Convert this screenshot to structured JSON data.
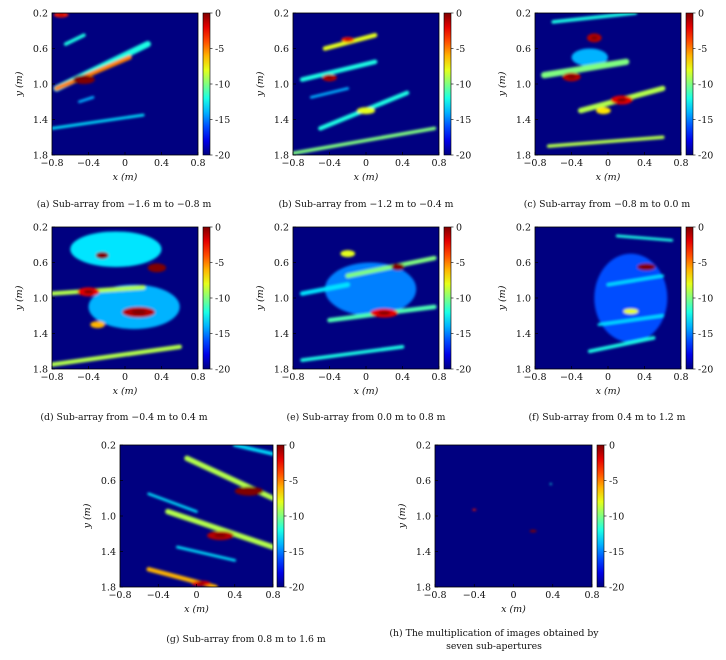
{
  "colorbar": {
    "ticks": [
      "0",
      "-5",
      "-10",
      "-15",
      "-20"
    ]
  },
  "colors": {
    "background": "#0d2d8c",
    "bright": "#e8d816",
    "peak": "#c81414",
    "line": "#3cc2e8"
  },
  "chart_data": [
    {
      "type": "heatmap",
      "caption": "(a) Sub-array from −1.6 m to −0.8 m",
      "xlabel": "x (m)",
      "ylabel": "y (m)",
      "xlim": [
        -0.8,
        0.8
      ],
      "ylim": [
        1.8,
        0.2
      ],
      "clim": [
        -20,
        0
      ],
      "x_ticks": [
        "−0.8",
        "−0.4",
        "0",
        "0.4",
        "0.8"
      ],
      "y_ticks": [
        "0.2",
        "0.6",
        "1.0",
        "1.4",
        "1.8"
      ],
      "colorbar_ticks": [
        "0",
        "-5",
        "-10",
        "-15",
        "-20"
      ],
      "features": [
        {
          "kind": "streak",
          "x1": -0.75,
          "y1": 1.05,
          "x2": 0.25,
          "y2": 0.55,
          "w": 0.07,
          "level": -12
        },
        {
          "kind": "streak",
          "x1": -0.75,
          "y1": 1.05,
          "x2": 0.05,
          "y2": 0.7,
          "w": 0.05,
          "level": -5
        },
        {
          "kind": "blob",
          "x": -0.45,
          "y": 0.95,
          "rx": 0.12,
          "ry": 0.05,
          "level": 0
        },
        {
          "kind": "blob",
          "x": -0.7,
          "y": 0.22,
          "rx": 0.08,
          "ry": 0.03,
          "level": -3
        },
        {
          "kind": "streak",
          "x1": -0.65,
          "y1": 0.55,
          "x2": -0.45,
          "y2": 0.45,
          "w": 0.04,
          "level": -12
        },
        {
          "kind": "streak",
          "x1": -0.8,
          "y1": 1.5,
          "x2": 0.2,
          "y2": 1.35,
          "w": 0.03,
          "level": -13
        },
        {
          "kind": "streak",
          "x1": -0.5,
          "y1": 1.2,
          "x2": -0.35,
          "y2": 1.15,
          "w": 0.03,
          "level": -14
        }
      ]
    },
    {
      "type": "heatmap",
      "caption": "(b) Sub-array from −1.2 m to −0.4 m",
      "xlabel": "x (m)",
      "ylabel": "y (m)",
      "xlim": [
        -0.8,
        0.8
      ],
      "ylim": [
        1.8,
        0.2
      ],
      "clim": [
        -20,
        0
      ],
      "x_ticks": [
        "−0.8",
        "−0.4",
        "0",
        "0.4",
        "0.8"
      ],
      "y_ticks": [
        "0.2",
        "0.6",
        "1.0",
        "1.4",
        "1.8"
      ],
      "colorbar_ticks": [
        "0",
        "-5",
        "-10",
        "-15",
        "-20"
      ],
      "features": [
        {
          "kind": "streak",
          "x1": -0.7,
          "y1": 0.95,
          "x2": 0.1,
          "y2": 0.75,
          "w": 0.05,
          "level": -12
        },
        {
          "kind": "blob",
          "x": -0.4,
          "y": 0.93,
          "rx": 0.08,
          "ry": 0.04,
          "level": -1
        },
        {
          "kind": "streak",
          "x1": -0.45,
          "y1": 0.6,
          "x2": 0.1,
          "y2": 0.45,
          "w": 0.05,
          "level": -8
        },
        {
          "kind": "blob",
          "x": -0.2,
          "y": 0.5,
          "rx": 0.07,
          "ry": 0.03,
          "level": -3
        },
        {
          "kind": "streak",
          "x1": -0.5,
          "y1": 1.5,
          "x2": 0.45,
          "y2": 1.1,
          "w": 0.05,
          "level": -12
        },
        {
          "kind": "blob",
          "x": 0.0,
          "y": 1.3,
          "rx": 0.1,
          "ry": 0.04,
          "level": -8
        },
        {
          "kind": "streak",
          "x1": -0.8,
          "y1": 1.78,
          "x2": 0.75,
          "y2": 1.5,
          "w": 0.04,
          "level": -10
        },
        {
          "kind": "streak",
          "x1": -0.6,
          "y1": 1.15,
          "x2": -0.2,
          "y2": 1.05,
          "w": 0.03,
          "level": -14
        }
      ]
    },
    {
      "type": "heatmap",
      "caption": "(c) Sub-array from −0.8 m to 0.0 m",
      "xlabel": "x (m)",
      "ylabel": "y (m)",
      "xlim": [
        -0.8,
        0.8
      ],
      "ylim": [
        1.8,
        0.2
      ],
      "clim": [
        -20,
        0
      ],
      "x_ticks": [
        "−0.8",
        "−0.4",
        "0",
        "0.4",
        "0.8"
      ],
      "y_ticks": [
        "0.2",
        "0.6",
        "1.0",
        "1.4",
        "1.8"
      ],
      "colorbar_ticks": [
        "0",
        "-5",
        "-10",
        "-15",
        "-20"
      ],
      "features": [
        {
          "kind": "streak",
          "x1": -0.6,
          "y1": 0.3,
          "x2": 0.3,
          "y2": 0.2,
          "w": 0.04,
          "level": -12
        },
        {
          "kind": "blob",
          "x": -0.15,
          "y": 0.48,
          "rx": 0.08,
          "ry": 0.05,
          "level": -1
        },
        {
          "kind": "blob",
          "x": -0.4,
          "y": 0.92,
          "rx": 0.1,
          "ry": 0.05,
          "level": -1
        },
        {
          "kind": "streak",
          "x1": -0.7,
          "y1": 0.9,
          "x2": 0.2,
          "y2": 0.75,
          "w": 0.07,
          "level": -10
        },
        {
          "kind": "blob",
          "x": 0.15,
          "y": 1.18,
          "rx": 0.12,
          "ry": 0.05,
          "level": -2
        },
        {
          "kind": "streak",
          "x1": -0.3,
          "y1": 1.3,
          "x2": 0.6,
          "y2": 1.05,
          "w": 0.06,
          "level": -9
        },
        {
          "kind": "blob",
          "x": -0.05,
          "y": 1.3,
          "rx": 0.08,
          "ry": 0.04,
          "level": -7
        },
        {
          "kind": "streak",
          "x1": -0.65,
          "y1": 1.7,
          "x2": 0.6,
          "y2": 1.6,
          "w": 0.04,
          "level": -9
        },
        {
          "kind": "blob",
          "x": -0.2,
          "y": 0.7,
          "rx": 0.2,
          "ry": 0.1,
          "level": -14
        }
      ]
    },
    {
      "type": "heatmap",
      "caption": "(d) Sub-array from −0.4 m to 0.4 m",
      "xlabel": "x (m)",
      "ylabel": "y (m)",
      "xlim": [
        -0.8,
        0.8
      ],
      "ylim": [
        1.8,
        0.2
      ],
      "clim": [
        -20,
        0
      ],
      "x_ticks": [
        "−0.8",
        "−0.4",
        "0",
        "0.4",
        "0.8"
      ],
      "y_ticks": [
        "0.2",
        "0.6",
        "1.0",
        "1.4",
        "1.8"
      ],
      "colorbar_ticks": [
        "0",
        "-5",
        "-10",
        "-15",
        "-20"
      ],
      "features": [
        {
          "kind": "blob",
          "x": -0.1,
          "y": 0.45,
          "rx": 0.5,
          "ry": 0.2,
          "level": -13
        },
        {
          "kind": "blob",
          "x": -0.25,
          "y": 0.52,
          "rx": 0.07,
          "ry": 0.04,
          "level": 0
        },
        {
          "kind": "blob",
          "x": 0.35,
          "y": 0.66,
          "rx": 0.1,
          "ry": 0.05,
          "level": 0
        },
        {
          "kind": "blob",
          "x": -0.4,
          "y": 0.93,
          "rx": 0.12,
          "ry": 0.05,
          "level": -2
        },
        {
          "kind": "streak",
          "x1": -0.8,
          "y1": 0.95,
          "x2": 0.2,
          "y2": 0.88,
          "w": 0.05,
          "level": -9
        },
        {
          "kind": "blob",
          "x": 0.15,
          "y": 1.16,
          "rx": 0.18,
          "ry": 0.06,
          "level": -1
        },
        {
          "kind": "blob",
          "x": -0.3,
          "y": 1.3,
          "rx": 0.08,
          "ry": 0.04,
          "level": -6
        },
        {
          "kind": "streak",
          "x1": -0.8,
          "y1": 1.75,
          "x2": 0.6,
          "y2": 1.55,
          "w": 0.05,
          "level": -9
        },
        {
          "kind": "blob",
          "x": 0.1,
          "y": 1.1,
          "rx": 0.5,
          "ry": 0.25,
          "level": -14
        }
      ]
    },
    {
      "type": "heatmap",
      "caption": "(e) Sub-array from 0.0 m to 0.8 m",
      "xlabel": "x (m)",
      "ylabel": "y (m)",
      "xlim": [
        -0.8,
        0.8
      ],
      "ylim": [
        1.8,
        0.2
      ],
      "clim": [
        -20,
        0
      ],
      "x_ticks": [
        "−0.8",
        "−0.4",
        "0",
        "0.4",
        "0.8"
      ],
      "y_ticks": [
        "0.2",
        "0.6",
        "1.0",
        "1.4",
        "1.8"
      ],
      "colorbar_ticks": [
        "0",
        "-5",
        "-10",
        "-15",
        "-20"
      ],
      "features": [
        {
          "kind": "blob",
          "x": 0.35,
          "y": 0.65,
          "rx": 0.07,
          "ry": 0.04,
          "level": 0
        },
        {
          "kind": "streak",
          "x1": -0.2,
          "y1": 0.75,
          "x2": 0.75,
          "y2": 0.55,
          "w": 0.05,
          "level": -10
        },
        {
          "kind": "blob",
          "x": -0.2,
          "y": 0.5,
          "rx": 0.08,
          "ry": 0.04,
          "level": -8
        },
        {
          "kind": "blob",
          "x": 0.2,
          "y": 1.17,
          "rx": 0.15,
          "ry": 0.05,
          "level": -2
        },
        {
          "kind": "streak",
          "x1": -0.4,
          "y1": 1.25,
          "x2": 0.75,
          "y2": 1.1,
          "w": 0.05,
          "level": -11
        },
        {
          "kind": "streak",
          "x1": -0.7,
          "y1": 0.95,
          "x2": -0.2,
          "y2": 0.85,
          "w": 0.05,
          "level": -13
        },
        {
          "kind": "streak",
          "x1": -0.7,
          "y1": 1.7,
          "x2": 0.4,
          "y2": 1.55,
          "w": 0.04,
          "level": -12
        },
        {
          "kind": "blob",
          "x": 0.05,
          "y": 0.9,
          "rx": 0.5,
          "ry": 0.3,
          "level": -15
        }
      ]
    },
    {
      "type": "heatmap",
      "caption": "(f) Sub-array from 0.4 m to 1.2 m",
      "xlabel": "x (m)",
      "ylabel": "y (m)",
      "xlim": [
        -0.8,
        0.8
      ],
      "ylim": [
        1.8,
        0.2
      ],
      "clim": [
        -20,
        0
      ],
      "x_ticks": [
        "−0.8",
        "−0.4",
        "0",
        "0.4",
        "0.8"
      ],
      "y_ticks": [
        "0.2",
        "0.6",
        "1.0",
        "1.4",
        "1.8"
      ],
      "colorbar_ticks": [
        "0",
        "-5",
        "-10",
        "-15",
        "-20"
      ],
      "features": [
        {
          "kind": "blob",
          "x": 0.42,
          "y": 0.65,
          "rx": 0.1,
          "ry": 0.04,
          "level": 0
        },
        {
          "kind": "blob",
          "x": 0.25,
          "y": 1.15,
          "rx": 0.08,
          "ry": 0.03,
          "level": -8
        },
        {
          "kind": "streak",
          "x1": 0.1,
          "y1": 0.3,
          "x2": 0.7,
          "y2": 0.35,
          "w": 0.03,
          "level": -12
        },
        {
          "kind": "streak",
          "x1": -0.2,
          "y1": 1.6,
          "x2": 0.5,
          "y2": 1.45,
          "w": 0.04,
          "level": -12
        },
        {
          "kind": "streak",
          "x1": -0.1,
          "y1": 1.3,
          "x2": 0.6,
          "y2": 1.2,
          "w": 0.03,
          "level": -13
        },
        {
          "kind": "streak",
          "x1": 0.0,
          "y1": 0.85,
          "x2": 0.6,
          "y2": 0.75,
          "w": 0.03,
          "level": -13
        },
        {
          "kind": "blob",
          "x": 0.25,
          "y": 1.0,
          "rx": 0.4,
          "ry": 0.5,
          "level": -16
        }
      ]
    },
    {
      "type": "heatmap",
      "caption": "(g) Sub-array from 0.8 m to 1.6 m",
      "xlabel": "x (m)",
      "ylabel": "y (m)",
      "xlim": [
        -0.8,
        0.8
      ],
      "ylim": [
        1.8,
        0.2
      ],
      "clim": [
        -20,
        0
      ],
      "x_ticks": [
        "−0.8",
        "−0.4",
        "0",
        "0.4",
        "0.8"
      ],
      "y_ticks": [
        "0.2",
        "0.6",
        "1.0",
        "1.4",
        "1.8"
      ],
      "colorbar_ticks": [
        "0",
        "-5",
        "-10",
        "-15",
        "-20"
      ],
      "features": [
        {
          "kind": "streak",
          "x1": -0.1,
          "y1": 0.35,
          "x2": 0.8,
          "y2": 0.8,
          "w": 0.06,
          "level": -9
        },
        {
          "kind": "blob",
          "x": 0.55,
          "y": 0.72,
          "rx": 0.15,
          "ry": 0.05,
          "level": 0
        },
        {
          "kind": "streak",
          "x1": -0.3,
          "y1": 0.95,
          "x2": 0.8,
          "y2": 1.35,
          "w": 0.06,
          "level": -9
        },
        {
          "kind": "blob",
          "x": 0.25,
          "y": 1.22,
          "rx": 0.14,
          "ry": 0.05,
          "level": -1
        },
        {
          "kind": "streak",
          "x1": -0.5,
          "y1": 1.6,
          "x2": 0.2,
          "y2": 1.8,
          "w": 0.05,
          "level": -6
        },
        {
          "kind": "blob",
          "x": 0.05,
          "y": 1.76,
          "rx": 0.1,
          "ry": 0.03,
          "level": -2
        },
        {
          "kind": "streak",
          "x1": 0.4,
          "y1": 0.2,
          "x2": 0.8,
          "y2": 0.3,
          "w": 0.04,
          "level": -13
        },
        {
          "kind": "streak",
          "x1": -0.5,
          "y1": 0.75,
          "x2": 0.0,
          "y2": 0.95,
          "w": 0.03,
          "level": -13
        },
        {
          "kind": "streak",
          "x1": -0.2,
          "y1": 1.35,
          "x2": 0.4,
          "y2": 1.5,
          "w": 0.03,
          "level": -13
        }
      ]
    },
    {
      "type": "heatmap",
      "caption": "(h) The multiplication of images obtained by seven sub-apertures",
      "xlabel": "x (m)",
      "ylabel": "y (m)",
      "xlim": [
        -0.8,
        0.8
      ],
      "ylim": [
        1.8,
        0.2
      ],
      "clim": [
        -20,
        0
      ],
      "x_ticks": [
        "−0.8",
        "−0.4",
        "0",
        "0.4",
        "0.8"
      ],
      "y_ticks": [
        "0.2",
        "0.6",
        "1.0",
        "1.4",
        "1.8"
      ],
      "colorbar_ticks": [
        "0",
        "-5",
        "-10",
        "-15",
        "-20"
      ],
      "features": [
        {
          "kind": "blob",
          "x": -0.4,
          "y": 0.93,
          "rx": 0.02,
          "ry": 0.012,
          "level": -3
        },
        {
          "kind": "blob",
          "x": 0.2,
          "y": 1.17,
          "rx": 0.035,
          "ry": 0.015,
          "level": 0
        },
        {
          "kind": "blob",
          "x": 0.38,
          "y": 0.64,
          "rx": 0.01,
          "ry": 0.008,
          "level": -12
        }
      ]
    }
  ]
}
